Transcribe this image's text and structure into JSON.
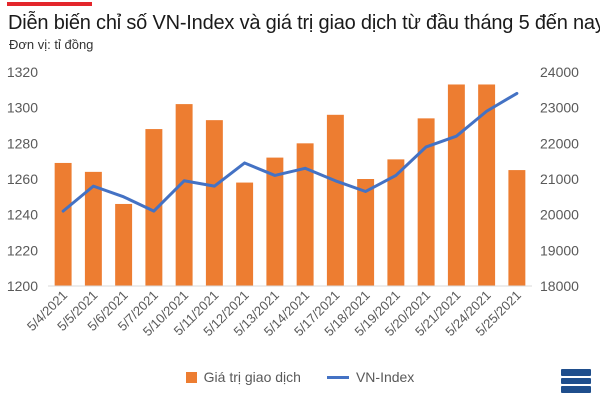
{
  "header": {
    "title": "Diễn biến chỉ số VN-Index và giá trị giao dịch từ đầu tháng 5 đến nay",
    "subtitle": "Đơn vị: tỉ đồng"
  },
  "colors": {
    "accent": "#e3262b",
    "bar": "#ed7d31",
    "line": "#4472c4",
    "logo": "#1f4e8c"
  },
  "legend": {
    "bar_label": "Giá trị giao dịch",
    "line_label": "VN-Index"
  },
  "logo": {
    "icon": "logo-mark-icon"
  },
  "chart_data": {
    "type": "bar",
    "categories": [
      "5/4/2021",
      "5/5/2021",
      "5/6/2021",
      "5/7/2021",
      "5/10/2021",
      "5/11/2021",
      "5/12/2021",
      "5/13/2021",
      "5/14/2021",
      "5/17/2021",
      "5/18/2021",
      "5/19/2021",
      "5/20/2021",
      "5/21/2021",
      "5/24/2021",
      "5/25/2021"
    ],
    "series": [
      {
        "name": "Giá trị giao dịch",
        "type": "bar",
        "axis": "left",
        "values": [
          1269,
          1264,
          1246,
          1288,
          1302,
          1293,
          1258,
          1272,
          1280,
          1296,
          1260,
          1271,
          1294,
          1313,
          1313,
          1265
        ]
      },
      {
        "name": "VN-Index",
        "type": "line",
        "axis": "right",
        "values": [
          20100,
          20800,
          20500,
          20100,
          20950,
          20800,
          21450,
          21100,
          21300,
          20950,
          20650,
          21100,
          21900,
          22200,
          22900,
          23400
        ]
      }
    ],
    "y_left": {
      "min": 1200,
      "max": 1320,
      "ticks": [
        1200,
        1220,
        1240,
        1260,
        1280,
        1300,
        1320
      ]
    },
    "y_right": {
      "min": 18000,
      "max": 24000,
      "ticks": [
        18000,
        19000,
        20000,
        21000,
        22000,
        23000,
        24000
      ]
    },
    "grid": false,
    "legend_position": "bottom"
  }
}
